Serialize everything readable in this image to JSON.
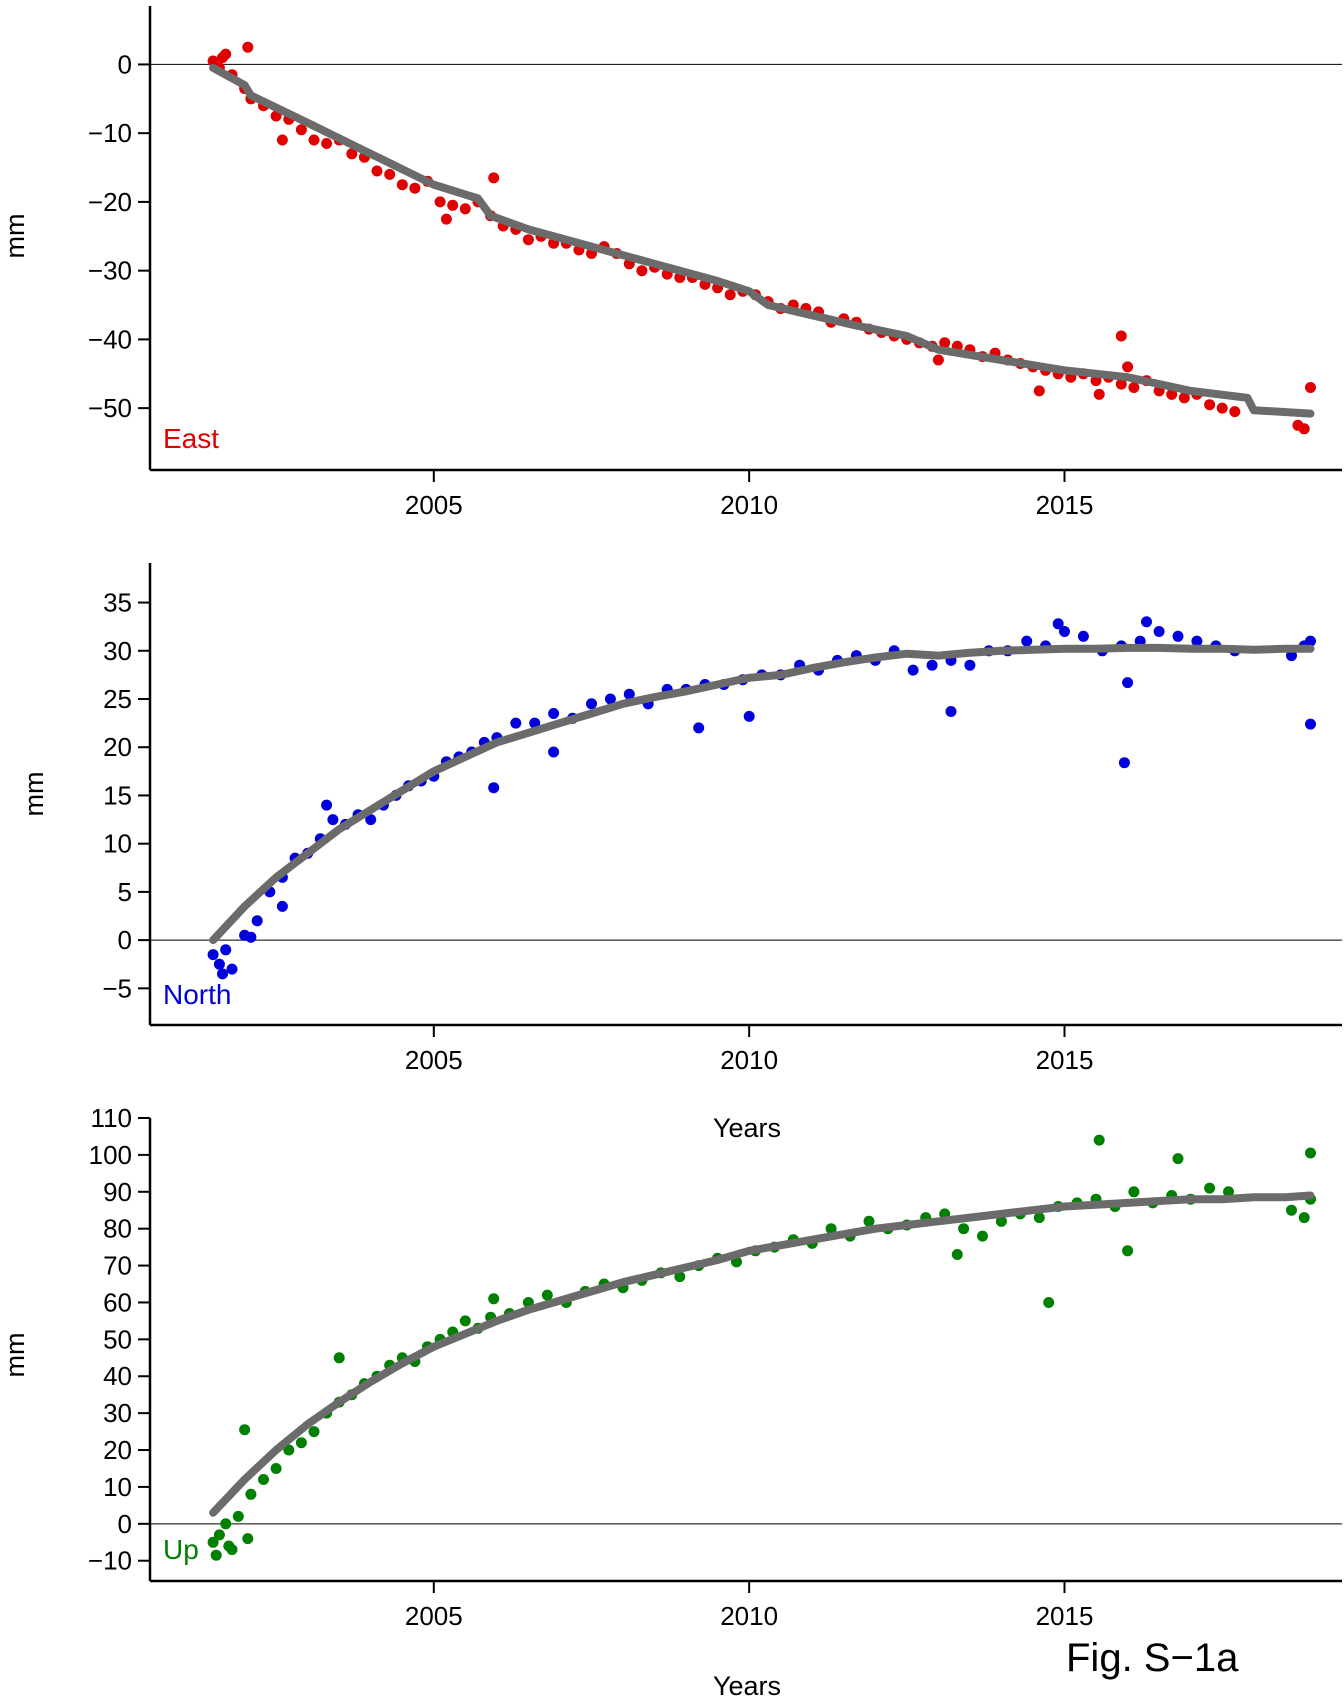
{
  "caption": "Fig. S−1a",
  "colors": {
    "East": "#e00000",
    "North": "#0000dd",
    "Up": "#008000",
    "model": "#6b6b6b",
    "axis": "#000000"
  },
  "chart_data": [
    {
      "type": "scatter",
      "label": "East",
      "xlabel": "",
      "ylabel": "mm",
      "xlim": [
        2000.5,
        2019.4
      ],
      "ylim": [
        -59,
        8.5
      ],
      "xticks": [
        2005,
        2010,
        2015
      ],
      "xtick_labels": [
        "2005",
        "2010",
        "2015"
      ],
      "yticks": [
        0,
        -10,
        -20,
        -30,
        -40,
        -50
      ],
      "ytick_labels": [
        "0",
        "−10",
        "−20",
        "−30",
        "−40",
        "−50"
      ],
      "zero_line": true,
      "model": {
        "x": [
          2001.5,
          2002.0,
          2002.1,
          2003.0,
          2004.0,
          2005.0,
          2005.7,
          2005.9,
          2006.5,
          2007.5,
          2008.5,
          2009.5,
          2010.0,
          2010.3,
          2011.0,
          2011.7,
          2012.5,
          2013.0,
          2014.0,
          2015.0,
          2016.0,
          2017.0,
          2017.9,
          2018.0,
          2018.9
        ],
        "y": [
          -0.5,
          -3.0,
          -4.5,
          -8.5,
          -13.0,
          -17.5,
          -19.5,
          -22.0,
          -24.0,
          -26.5,
          -29.0,
          -31.5,
          -33.0,
          -35.0,
          -36.5,
          -38.0,
          -39.5,
          -41.5,
          -43.0,
          -44.5,
          -45.5,
          -47.5,
          -48.5,
          -50.3,
          -50.8
        ]
      },
      "points": {
        "x": [
          2001.5,
          2001.6,
          2001.7,
          2001.8,
          2002.0,
          2002.1,
          2002.3,
          2002.5,
          2002.7,
          2002.9,
          2003.1,
          2003.3,
          2003.5,
          2003.7,
          2003.9,
          2004.1,
          2004.3,
          2004.5,
          2004.7,
          2004.9,
          2005.1,
          2005.3,
          2005.5,
          2005.7,
          2005.9,
          2006.1,
          2006.3,
          2006.5,
          2006.7,
          2006.9,
          2007.1,
          2007.3,
          2007.5,
          2007.7,
          2007.9,
          2008.1,
          2008.3,
          2008.5,
          2008.7,
          2008.9,
          2009.1,
          2009.3,
          2009.5,
          2009.7,
          2009.9,
          2010.1,
          2010.3,
          2010.5,
          2010.7,
          2010.9,
          2011.1,
          2011.3,
          2011.5,
          2011.7,
          2011.9,
          2012.1,
          2012.3,
          2012.5,
          2012.7,
          2012.9,
          2013.1,
          2013.3,
          2013.5,
          2013.7,
          2013.9,
          2014.1,
          2014.3,
          2014.5,
          2014.7,
          2014.9,
          2015.1,
          2015.3,
          2015.5,
          2015.7,
          2015.9,
          2016.1,
          2016.3,
          2016.5,
          2016.7,
          2016.9,
          2017.1,
          2017.3,
          2017.5,
          2017.7,
          2018.7,
          2018.8,
          2018.9,
          2001.65,
          2002.05,
          2002.6,
          2005.2,
          2005.95,
          2014.6,
          2015.55,
          2015.9,
          2016.0,
          2013.0
        ],
        "y": [
          0.5,
          -0.5,
          1.5,
          -1.5,
          -3.5,
          -5.0,
          -6.0,
          -7.5,
          -8.0,
          -9.5,
          -11.0,
          -11.5,
          -11.0,
          -13.0,
          -13.5,
          -15.5,
          -16.0,
          -17.5,
          -18.0,
          -17.0,
          -20.0,
          -20.5,
          -21.0,
          -20.0,
          -22.0,
          -23.5,
          -24.0,
          -25.5,
          -25.0,
          -26.0,
          -26.0,
          -27.0,
          -27.5,
          -26.5,
          -27.5,
          -29.0,
          -30.0,
          -29.5,
          -30.5,
          -31.0,
          -31.0,
          -32.0,
          -32.5,
          -33.5,
          -33.0,
          -33.5,
          -34.5,
          -35.5,
          -35.0,
          -35.5,
          -36.0,
          -37.5,
          -37.0,
          -37.5,
          -38.5,
          -39.0,
          -39.5,
          -40.0,
          -40.5,
          -41.0,
          -40.5,
          -41.0,
          -41.5,
          -42.5,
          -42.0,
          -43.0,
          -43.5,
          -44.0,
          -44.5,
          -45.0,
          -45.5,
          -45.0,
          -46.0,
          -45.5,
          -46.5,
          -47.0,
          -46.0,
          -47.5,
          -48.0,
          -48.5,
          -48.0,
          -49.5,
          -50.0,
          -50.5,
          -52.5,
          -53.0,
          -47.0,
          1.0,
          2.5,
          -11.0,
          -22.5,
          -16.5,
          -47.5,
          -48.0,
          -39.5,
          -44.0,
          -43.0
        ]
      }
    },
    {
      "type": "scatter",
      "label": "North",
      "xlabel": "Years",
      "ylabel": "mm",
      "xlim": [
        2000.5,
        2019.4
      ],
      "ylim": [
        -8.8,
        39.1
      ],
      "xticks": [
        2005,
        2010,
        2015
      ],
      "xtick_labels": [
        "2005",
        "2010",
        "2015"
      ],
      "yticks": [
        35,
        30,
        25,
        20,
        15,
        10,
        5,
        0,
        -5
      ],
      "ytick_labels": [
        "35",
        "30",
        "25",
        "20",
        "15",
        "10",
        "5",
        "0",
        "−5"
      ],
      "zero_line": true,
      "model": {
        "x": [
          2001.5,
          2002.0,
          2002.5,
          2003.0,
          2003.5,
          2004.0,
          2004.5,
          2005.0,
          2005.5,
          2006.0,
          2006.5,
          2007.0,
          2007.5,
          2008.0,
          2008.5,
          2009.0,
          2009.5,
          2010.0,
          2010.5,
          2011.0,
          2011.5,
          2012.0,
          2012.5,
          2013.0,
          2013.5,
          2014.0,
          2014.5,
          2015.0,
          2015.5,
          2016.0,
          2016.5,
          2017.0,
          2017.5,
          2018.0,
          2018.5,
          2018.9
        ],
        "y": [
          0.0,
          3.5,
          6.5,
          9.0,
          11.5,
          13.5,
          15.5,
          17.5,
          19.0,
          20.5,
          21.5,
          22.5,
          23.5,
          24.5,
          25.2,
          25.8,
          26.5,
          27.2,
          27.5,
          28.2,
          28.8,
          29.3,
          29.7,
          29.5,
          29.8,
          30.0,
          30.1,
          30.2,
          30.2,
          30.3,
          30.3,
          30.2,
          30.2,
          30.1,
          30.2,
          30.2
        ]
      },
      "points": {
        "x": [
          2001.5,
          2001.6,
          2001.7,
          2001.8,
          2002.0,
          2002.2,
          2002.4,
          2002.6,
          2002.8,
          2003.0,
          2003.2,
          2003.4,
          2003.6,
          2003.8,
          2004.0,
          2004.2,
          2004.4,
          2004.6,
          2004.8,
          2005.0,
          2005.2,
          2005.4,
          2005.6,
          2005.8,
          2006.0,
          2006.3,
          2006.6,
          2006.9,
          2007.2,
          2007.5,
          2007.8,
          2008.1,
          2008.4,
          2008.7,
          2009.0,
          2009.3,
          2009.6,
          2009.9,
          2010.2,
          2010.5,
          2010.8,
          2011.1,
          2011.4,
          2011.7,
          2012.0,
          2012.3,
          2012.6,
          2012.9,
          2013.2,
          2013.5,
          2013.8,
          2014.1,
          2014.4,
          2014.7,
          2015.0,
          2015.3,
          2015.6,
          2015.9,
          2016.2,
          2016.5,
          2016.8,
          2017.1,
          2017.4,
          2017.7,
          2018.6,
          2018.8,
          2018.9,
          2001.65,
          2002.1,
          2002.6,
          2005.95,
          2006.9,
          2009.2,
          2010.0,
          2013.2,
          2016.0,
          2015.95,
          2018.9,
          2003.3,
          2014.9,
          2016.3
        ],
        "y": [
          -1.5,
          -2.5,
          -1.0,
          -3.0,
          0.5,
          2.0,
          5.0,
          6.5,
          8.5,
          9.0,
          10.5,
          12.5,
          12.0,
          13.0,
          12.5,
          14.0,
          15.0,
          16.0,
          16.5,
          17.0,
          18.5,
          19.0,
          19.5,
          20.5,
          21.0,
          22.5,
          22.5,
          23.5,
          23.0,
          24.5,
          25.0,
          25.5,
          24.5,
          26.0,
          26.0,
          26.5,
          26.5,
          27.0,
          27.5,
          27.5,
          28.5,
          28.0,
          29.0,
          29.5,
          29.0,
          30.0,
          28.0,
          28.5,
          29.0,
          28.5,
          30.0,
          30.0,
          31.0,
          30.5,
          32.0,
          31.5,
          30.0,
          30.5,
          31.0,
          32.0,
          31.5,
          31.0,
          30.5,
          30.0,
          29.5,
          30.5,
          31.0,
          -3.5,
          0.3,
          3.5,
          15.8,
          19.5,
          22.0,
          23.2,
          23.7,
          26.7,
          18.4,
          22.4,
          14.0,
          32.8,
          33.0
        ]
      }
    },
    {
      "type": "scatter",
      "label": "Up",
      "xlabel": "Years",
      "ylabel": "mm",
      "xlim": [
        2000.5,
        2019.4
      ],
      "ylim": [
        -15.5,
        110
      ],
      "xticks": [
        2005,
        2010,
        2015
      ],
      "xtick_labels": [
        "2005",
        "2010",
        "2015"
      ],
      "yticks": [
        110,
        100,
        90,
        80,
        70,
        60,
        50,
        40,
        30,
        20,
        10,
        0,
        -10
      ],
      "ytick_labels": [
        "110",
        "100",
        "90",
        "80",
        "70",
        "60",
        "50",
        "40",
        "30",
        "20",
        "10",
        "0",
        "−10"
      ],
      "zero_line": true,
      "model": {
        "x": [
          2001.5,
          2002.0,
          2002.5,
          2003.0,
          2003.5,
          2004.0,
          2004.5,
          2005.0,
          2005.5,
          2006.0,
          2006.5,
          2007.0,
          2007.5,
          2008.0,
          2008.5,
          2009.0,
          2009.5,
          2010.0,
          2010.5,
          2011.0,
          2011.5,
          2012.0,
          2012.5,
          2013.0,
          2013.5,
          2014.0,
          2014.5,
          2015.0,
          2015.5,
          2016.0,
          2016.5,
          2017.0,
          2017.5,
          2018.0,
          2018.5,
          2018.9
        ],
        "y": [
          3.0,
          12.0,
          20.0,
          27.0,
          33.0,
          38.5,
          43.5,
          48.0,
          51.5,
          55.0,
          58.0,
          60.5,
          63.0,
          65.5,
          67.5,
          69.5,
          71.5,
          74.0,
          75.5,
          77.0,
          78.5,
          80.0,
          81.0,
          82.0,
          83.0,
          84.0,
          85.0,
          86.0,
          86.5,
          87.0,
          87.5,
          88.0,
          88.0,
          88.5,
          88.5,
          89.0
        ]
      },
      "points": {
        "x": [
          2001.5,
          2001.6,
          2001.7,
          2001.8,
          2001.9,
          2002.1,
          2002.3,
          2002.5,
          2002.7,
          2002.9,
          2003.1,
          2003.3,
          2003.5,
          2003.7,
          2003.9,
          2004.1,
          2004.3,
          2004.5,
          2004.7,
          2004.9,
          2005.1,
          2005.3,
          2005.5,
          2005.7,
          2005.9,
          2006.2,
          2006.5,
          2006.8,
          2007.1,
          2007.4,
          2007.7,
          2008.0,
          2008.3,
          2008.6,
          2008.9,
          2009.2,
          2009.5,
          2009.8,
          2010.1,
          2010.4,
          2010.7,
          2011.0,
          2011.3,
          2011.6,
          2011.9,
          2012.2,
          2012.5,
          2012.8,
          2013.1,
          2013.4,
          2013.7,
          2014.0,
          2014.3,
          2014.6,
          2014.9,
          2015.2,
          2015.5,
          2015.8,
          2016.1,
          2016.4,
          2016.7,
          2017.0,
          2017.3,
          2017.6,
          2018.6,
          2018.8,
          2018.9,
          2002.0,
          2002.05,
          2003.5,
          2005.95,
          2014.75,
          2015.55,
          2016.0,
          2016.8,
          2018.9,
          2013.3,
          2001.55,
          2001.75
        ],
        "y": [
          -5.0,
          -3.0,
          0.0,
          -7.0,
          2.0,
          8.0,
          12.0,
          15.0,
          20.0,
          22.0,
          25.0,
          30.0,
          33.0,
          35.0,
          38.0,
          40.0,
          43.0,
          45.0,
          44.0,
          48.0,
          50.0,
          52.0,
          55.0,
          53.0,
          56.0,
          57.0,
          60.0,
          62.0,
          60.0,
          63.0,
          65.0,
          64.0,
          66.0,
          68.0,
          67.0,
          70.0,
          72.0,
          71.0,
          74.0,
          75.0,
          77.0,
          76.0,
          80.0,
          78.0,
          82.0,
          80.0,
          81.0,
          83.0,
          84.0,
          80.0,
          78.0,
          82.0,
          84.0,
          83.0,
          86.0,
          87.0,
          88.0,
          86.0,
          90.0,
          87.0,
          89.0,
          88.0,
          91.0,
          90.0,
          85.0,
          83.0,
          88.0,
          25.5,
          -4.0,
          45.0,
          61.0,
          60.0,
          104.0,
          74.0,
          99.0,
          100.5,
          73.0,
          -8.5,
          -6.0
        ]
      }
    }
  ]
}
